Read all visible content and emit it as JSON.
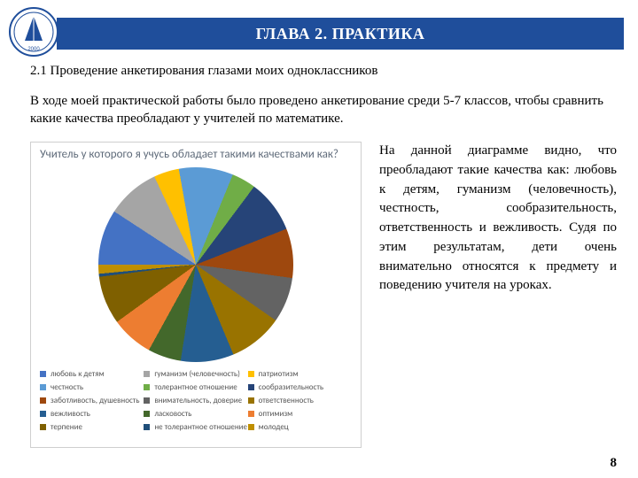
{
  "header": {
    "title": "ГЛАВА 2. ПРАКТИКА"
  },
  "logo": {
    "ring_outer": "#1f4e9b",
    "ring_inner": "#ffffff",
    "sail_fill": "#1f4e9b",
    "year": "2000"
  },
  "section_title": "2.1 Проведение анкетирования глазами моих одноклассников",
  "intro_text": "В ходе моей практической работы было проведено анкетирование среди 5-7 классов, чтобы сравнить какие качества преобладают у учителей по математике.",
  "chart": {
    "type": "pie",
    "title": "Учитель у которого я учусь обладает такими качествами как?",
    "title_color": "#5f6b7a",
    "title_fontsize": 13,
    "border_color": "#cfcfcf",
    "background_color": "#ffffff",
    "slices": [
      {
        "label": "любовь к детям",
        "value": 9.2,
        "color": "#4472c4"
      },
      {
        "label": "гуманизм (человечность)",
        "value": 8.8,
        "color": "#a5a5a5"
      },
      {
        "label": "патриотизм",
        "value": 4.2,
        "color": "#ffc000"
      },
      {
        "label": "честность",
        "value": 9.0,
        "color": "#5b9bd5"
      },
      {
        "label": "толерантное отношение",
        "value": 4.0,
        "color": "#70ad47"
      },
      {
        "label": "сообразительность",
        "value": 8.8,
        "color": "#264478"
      },
      {
        "label": "заботливость, душевность",
        "value": 8.2,
        "color": "#9e480e"
      },
      {
        "label": "внимательность, доверие",
        "value": 7.5,
        "color": "#636363"
      },
      {
        "label": "ответственность",
        "value": 9.0,
        "color": "#997300"
      },
      {
        "label": "вежливость",
        "value": 8.8,
        "color": "#255e91"
      },
      {
        "label": "ласковость",
        "value": 5.5,
        "color": "#43682b"
      },
      {
        "label": "оптимизм",
        "value": 7.0,
        "color": "#ed7d31"
      },
      {
        "label": "терпение",
        "value": 8.0,
        "color": "#7f6000"
      },
      {
        "label": "не толерантное отношение",
        "value": 0.5,
        "color": "#1f4e79"
      },
      {
        "label": "молодец",
        "value": 1.5,
        "color": "#bf8f00"
      }
    ]
  },
  "right_text": "На данной диаграмме видно, что преобладают такие качества как: любовь к детям, гуманизм (человечность), честность, сообразительность, ответственность и вежливость. Судя по этим результатам, дети очень внимательно относятся к предмету и поведению учителя на уроках.",
  "page_number": "8"
}
